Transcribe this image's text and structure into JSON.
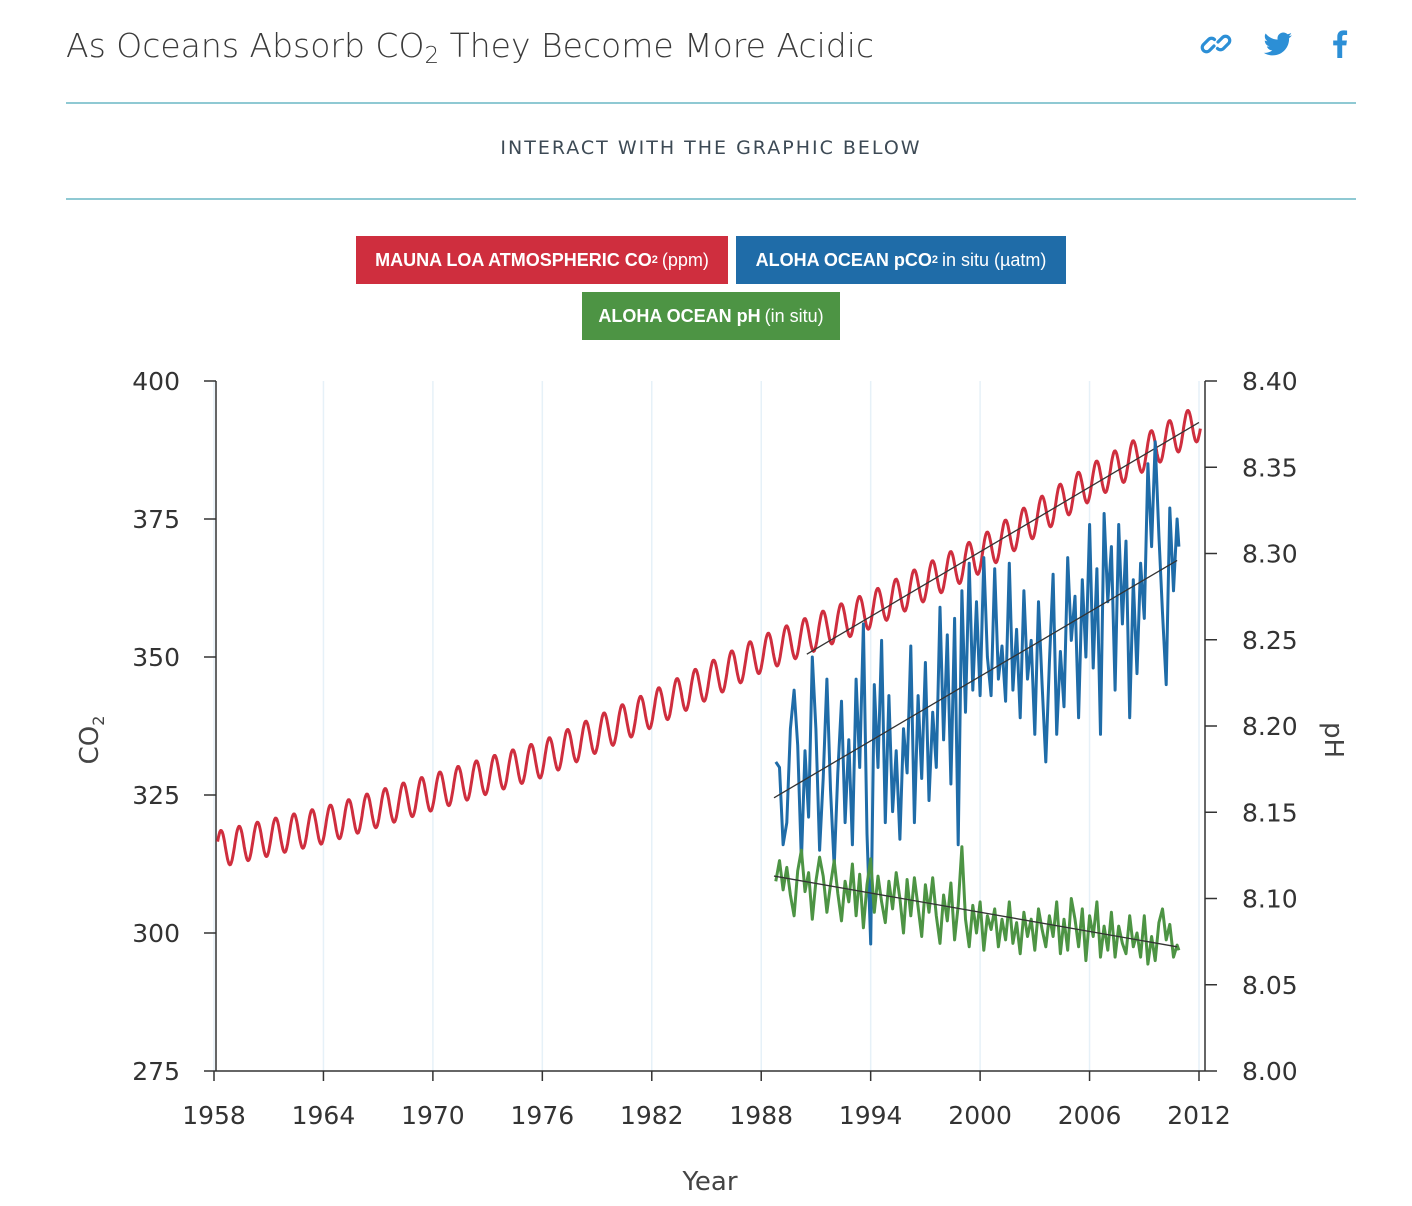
{
  "header": {
    "title_prefix": "As Oceans Absorb CO",
    "title_sub": "2",
    "title_suffix": " They Become More Acidic",
    "share_icons": [
      "link-icon",
      "twitter-icon",
      "facebook-icon"
    ]
  },
  "interact_text": "INTERACT WITH THE GRAPHIC BELOW",
  "toggles": {
    "mauna_loa": {
      "bold": "MAUNA LOA ATMOSPHERIC CO",
      "sub": "2",
      "suffix": "(ppm)",
      "color": "#cf2e3e"
    },
    "aloha_pco2": {
      "bold": "ALOHA OCEAN pCO",
      "sub": "2",
      "suffix": "in situ (µatm)",
      "color": "#1f6ca8"
    },
    "aloha_ph": {
      "bold": "ALOHA OCEAN pH",
      "sub": "",
      "suffix": "(in situ)",
      "color": "#4d9444"
    }
  },
  "chart_data": {
    "type": "line",
    "title": "",
    "xlabel": "Year",
    "ylabel_left": "CO2",
    "ylabel_right": "pH",
    "xlim": [
      1958,
      2012
    ],
    "ylim_left": [
      275,
      400
    ],
    "ylim_right": [
      8.0,
      8.4
    ],
    "x_ticks": [
      1958,
      1964,
      1970,
      1976,
      1982,
      1988,
      1994,
      2000,
      2006,
      2012
    ],
    "y_ticks_left": [
      275,
      300,
      325,
      350,
      375,
      400
    ],
    "y_ticks_right": [
      "8.00",
      "8.05",
      "8.10",
      "8.15",
      "8.20",
      "8.25",
      "8.30",
      "8.35",
      "8.40"
    ],
    "grid": "vertical",
    "series": [
      {
        "name": "MAUNA LOA ATMOSPHERIC CO2 (ppm)",
        "axis": "left",
        "color": "#cf2e3e",
        "x_start": 1958.2,
        "x_end": 2012.1,
        "trend_points": [
          [
            1958,
            315.0
          ],
          [
            1964,
            319.5
          ],
          [
            1970,
            325.5
          ],
          [
            1976,
            331.5
          ],
          [
            1982,
            340.5
          ],
          [
            1988,
            350.5
          ],
          [
            1994,
            358.5
          ],
          [
            2000,
            368.5
          ],
          [
            2006,
            381.5
          ],
          [
            2012,
            392.5
          ]
        ],
        "seasonal_amplitude": 3.3,
        "trend_line": [
          [
            1990.5,
            350.5
          ],
          [
            2012,
            392.5
          ]
        ]
      },
      {
        "name": "ALOHA OCEAN pCO2 in situ (µatm)",
        "axis": "left",
        "color": "#1f6ca8",
        "points": [
          [
            1988.8,
            331
          ],
          [
            1989.0,
            330
          ],
          [
            1989.2,
            316
          ],
          [
            1989.4,
            320
          ],
          [
            1989.6,
            337
          ],
          [
            1989.8,
            344
          ],
          [
            1990.0,
            334
          ],
          [
            1990.2,
            313
          ],
          [
            1990.4,
            333
          ],
          [
            1990.6,
            321
          ],
          [
            1990.8,
            350
          ],
          [
            1991.0,
            337
          ],
          [
            1991.2,
            315
          ],
          [
            1991.4,
            328
          ],
          [
            1991.6,
            346
          ],
          [
            1991.8,
            326
          ],
          [
            1992.0,
            312
          ],
          [
            1992.2,
            329
          ],
          [
            1992.4,
            342
          ],
          [
            1992.6,
            320
          ],
          [
            1992.8,
            335
          ],
          [
            1993.0,
            316
          ],
          [
            1993.2,
            346
          ],
          [
            1993.4,
            330
          ],
          [
            1993.6,
            356
          ],
          [
            1993.8,
            318
          ],
          [
            1994.0,
            298
          ],
          [
            1994.2,
            345
          ],
          [
            1994.4,
            330
          ],
          [
            1994.6,
            353
          ],
          [
            1994.8,
            320
          ],
          [
            1995.0,
            343
          ],
          [
            1995.2,
            322
          ],
          [
            1995.4,
            333
          ],
          [
            1995.6,
            317
          ],
          [
            1995.8,
            337
          ],
          [
            1996.0,
            329
          ],
          [
            1996.2,
            352
          ],
          [
            1996.4,
            320
          ],
          [
            1996.6,
            343
          ],
          [
            1996.8,
            328
          ],
          [
            1997.0,
            349
          ],
          [
            1997.2,
            324
          ],
          [
            1997.4,
            340
          ],
          [
            1997.6,
            330
          ],
          [
            1997.8,
            359
          ],
          [
            1998.0,
            335
          ],
          [
            1998.2,
            354
          ],
          [
            1998.4,
            327
          ],
          [
            1998.6,
            357
          ],
          [
            1998.8,
            316
          ],
          [
            1999.0,
            362
          ],
          [
            1999.2,
            340
          ],
          [
            1999.4,
            367
          ],
          [
            1999.6,
            344
          ],
          [
            1999.8,
            360
          ],
          [
            2000.0,
            343
          ],
          [
            2000.2,
            368
          ],
          [
            2000.4,
            350
          ],
          [
            2000.6,
            343
          ],
          [
            2000.8,
            366
          ],
          [
            2001.0,
            346
          ],
          [
            2001.2,
            352
          ],
          [
            2001.4,
            342
          ],
          [
            2001.6,
            367
          ],
          [
            2001.8,
            344
          ],
          [
            2002.0,
            355
          ],
          [
            2002.2,
            339
          ],
          [
            2002.4,
            362
          ],
          [
            2002.6,
            346
          ],
          [
            2002.8,
            353
          ],
          [
            2003.0,
            336
          ],
          [
            2003.2,
            360
          ],
          [
            2003.4,
            345
          ],
          [
            2003.6,
            331
          ],
          [
            2003.8,
            349
          ],
          [
            2004.0,
            365
          ],
          [
            2004.2,
            336
          ],
          [
            2004.4,
            351
          ],
          [
            2004.6,
            341
          ],
          [
            2004.8,
            368
          ],
          [
            2005.0,
            353
          ],
          [
            2005.2,
            361
          ],
          [
            2005.4,
            339
          ],
          [
            2005.6,
            364
          ],
          [
            2005.8,
            350
          ],
          [
            2006.0,
            374
          ],
          [
            2006.2,
            348
          ],
          [
            2006.4,
            366
          ],
          [
            2006.6,
            336
          ],
          [
            2006.8,
            376
          ],
          [
            2007.0,
            360
          ],
          [
            2007.2,
            370
          ],
          [
            2007.4,
            344
          ],
          [
            2007.6,
            374
          ],
          [
            2007.8,
            356
          ],
          [
            2008.0,
            371
          ],
          [
            2008.2,
            339
          ],
          [
            2008.4,
            364
          ],
          [
            2008.6,
            347
          ],
          [
            2008.8,
            367
          ],
          [
            2009.0,
            357
          ],
          [
            2009.2,
            385
          ],
          [
            2009.4,
            370
          ],
          [
            2009.6,
            389
          ],
          [
            2009.8,
            372
          ],
          [
            2010.0,
            358
          ],
          [
            2010.2,
            345
          ],
          [
            2010.4,
            377
          ],
          [
            2010.6,
            362
          ],
          [
            2010.8,
            375
          ],
          [
            2010.9,
            370
          ]
        ],
        "trend_line": [
          [
            1988.7,
            324.5
          ],
          [
            2010.8,
            367.5
          ]
        ]
      },
      {
        "name": "ALOHA OCEAN pH (in situ)",
        "axis": "right",
        "color": "#4d9444",
        "points": [
          [
            1988.8,
            8.11
          ],
          [
            1989.0,
            8.122
          ],
          [
            1989.2,
            8.105
          ],
          [
            1989.4,
            8.118
          ],
          [
            1989.6,
            8.102
          ],
          [
            1989.8,
            8.09
          ],
          [
            1990.0,
            8.116
          ],
          [
            1990.2,
            8.128
          ],
          [
            1990.4,
            8.104
          ],
          [
            1990.6,
            8.115
          ],
          [
            1990.8,
            8.088
          ],
          [
            1991.0,
            8.11
          ],
          [
            1991.2,
            8.124
          ],
          [
            1991.4,
            8.113
          ],
          [
            1991.6,
            8.092
          ],
          [
            1991.8,
            8.108
          ],
          [
            1992.0,
            8.122
          ],
          [
            1992.2,
            8.103
          ],
          [
            1992.4,
            8.087
          ],
          [
            1992.6,
            8.11
          ],
          [
            1992.8,
            8.098
          ],
          [
            1993.0,
            8.12
          ],
          [
            1993.2,
            8.09
          ],
          [
            1993.4,
            8.114
          ],
          [
            1993.6,
            8.083
          ],
          [
            1993.8,
            8.108
          ],
          [
            1994.0,
            8.123
          ],
          [
            1994.2,
            8.092
          ],
          [
            1994.4,
            8.113
          ],
          [
            1994.6,
            8.098
          ],
          [
            1994.8,
            8.086
          ],
          [
            1995.0,
            8.11
          ],
          [
            1995.2,
            8.094
          ],
          [
            1995.4,
            8.115
          ],
          [
            1995.6,
            8.1
          ],
          [
            1995.8,
            8.08
          ],
          [
            1996.0,
            8.111
          ],
          [
            1996.2,
            8.09
          ],
          [
            1996.4,
            8.112
          ],
          [
            1996.6,
            8.095
          ],
          [
            1996.8,
            8.078
          ],
          [
            1997.0,
            8.108
          ],
          [
            1997.2,
            8.092
          ],
          [
            1997.4,
            8.112
          ],
          [
            1997.6,
            8.09
          ],
          [
            1997.8,
            8.074
          ],
          [
            1998.0,
            8.102
          ],
          [
            1998.2,
            8.087
          ],
          [
            1998.4,
            8.109
          ],
          [
            1998.6,
            8.076
          ],
          [
            1998.8,
            8.096
          ],
          [
            1999.0,
            8.13
          ],
          [
            1999.2,
            8.088
          ],
          [
            1999.4,
            8.072
          ],
          [
            1999.6,
            8.096
          ],
          [
            1999.8,
            8.08
          ],
          [
            2000.0,
            8.098
          ],
          [
            2000.2,
            8.07
          ],
          [
            2000.4,
            8.09
          ],
          [
            2000.6,
            8.082
          ],
          [
            2000.8,
            8.094
          ],
          [
            2001.0,
            8.072
          ],
          [
            2001.2,
            8.088
          ],
          [
            2001.4,
            8.076
          ],
          [
            2001.6,
            8.098
          ],
          [
            2001.8,
            8.074
          ],
          [
            2002.0,
            8.086
          ],
          [
            2002.2,
            8.068
          ],
          [
            2002.4,
            8.092
          ],
          [
            2002.6,
            8.078
          ],
          [
            2002.8,
            8.088
          ],
          [
            2003.0,
            8.07
          ],
          [
            2003.2,
            8.094
          ],
          [
            2003.4,
            8.082
          ],
          [
            2003.6,
            8.072
          ],
          [
            2003.8,
            8.09
          ],
          [
            2004.0,
            8.078
          ],
          [
            2004.2,
            8.098
          ],
          [
            2004.4,
            8.068
          ],
          [
            2004.6,
            8.088
          ],
          [
            2004.8,
            8.07
          ],
          [
            2005.0,
            8.1
          ],
          [
            2005.2,
            8.088
          ],
          [
            2005.4,
            8.072
          ],
          [
            2005.6,
            8.094
          ],
          [
            2005.8,
            8.064
          ],
          [
            2006.0,
            8.09
          ],
          [
            2006.2,
            8.078
          ],
          [
            2006.4,
            8.098
          ],
          [
            2006.6,
            8.066
          ],
          [
            2006.8,
            8.084
          ],
          [
            2007.0,
            8.07
          ],
          [
            2007.2,
            8.092
          ],
          [
            2007.4,
            8.066
          ],
          [
            2007.6,
            8.084
          ],
          [
            2007.8,
            8.074
          ],
          [
            2008.0,
            8.068
          ],
          [
            2008.2,
            8.09
          ],
          [
            2008.4,
            8.072
          ],
          [
            2008.6,
            8.08
          ],
          [
            2008.8,
            8.066
          ],
          [
            2009.0,
            8.09
          ],
          [
            2009.2,
            8.062
          ],
          [
            2009.4,
            8.078
          ],
          [
            2009.6,
            8.064
          ],
          [
            2009.8,
            8.086
          ],
          [
            2010.0,
            8.094
          ],
          [
            2010.2,
            8.076
          ],
          [
            2010.4,
            8.085
          ],
          [
            2010.6,
            8.066
          ],
          [
            2010.8,
            8.073
          ],
          [
            2010.9,
            8.07
          ]
        ],
        "trend_line": [
          [
            1988.7,
            8.113
          ],
          [
            2010.8,
            8.072
          ]
        ]
      }
    ]
  }
}
